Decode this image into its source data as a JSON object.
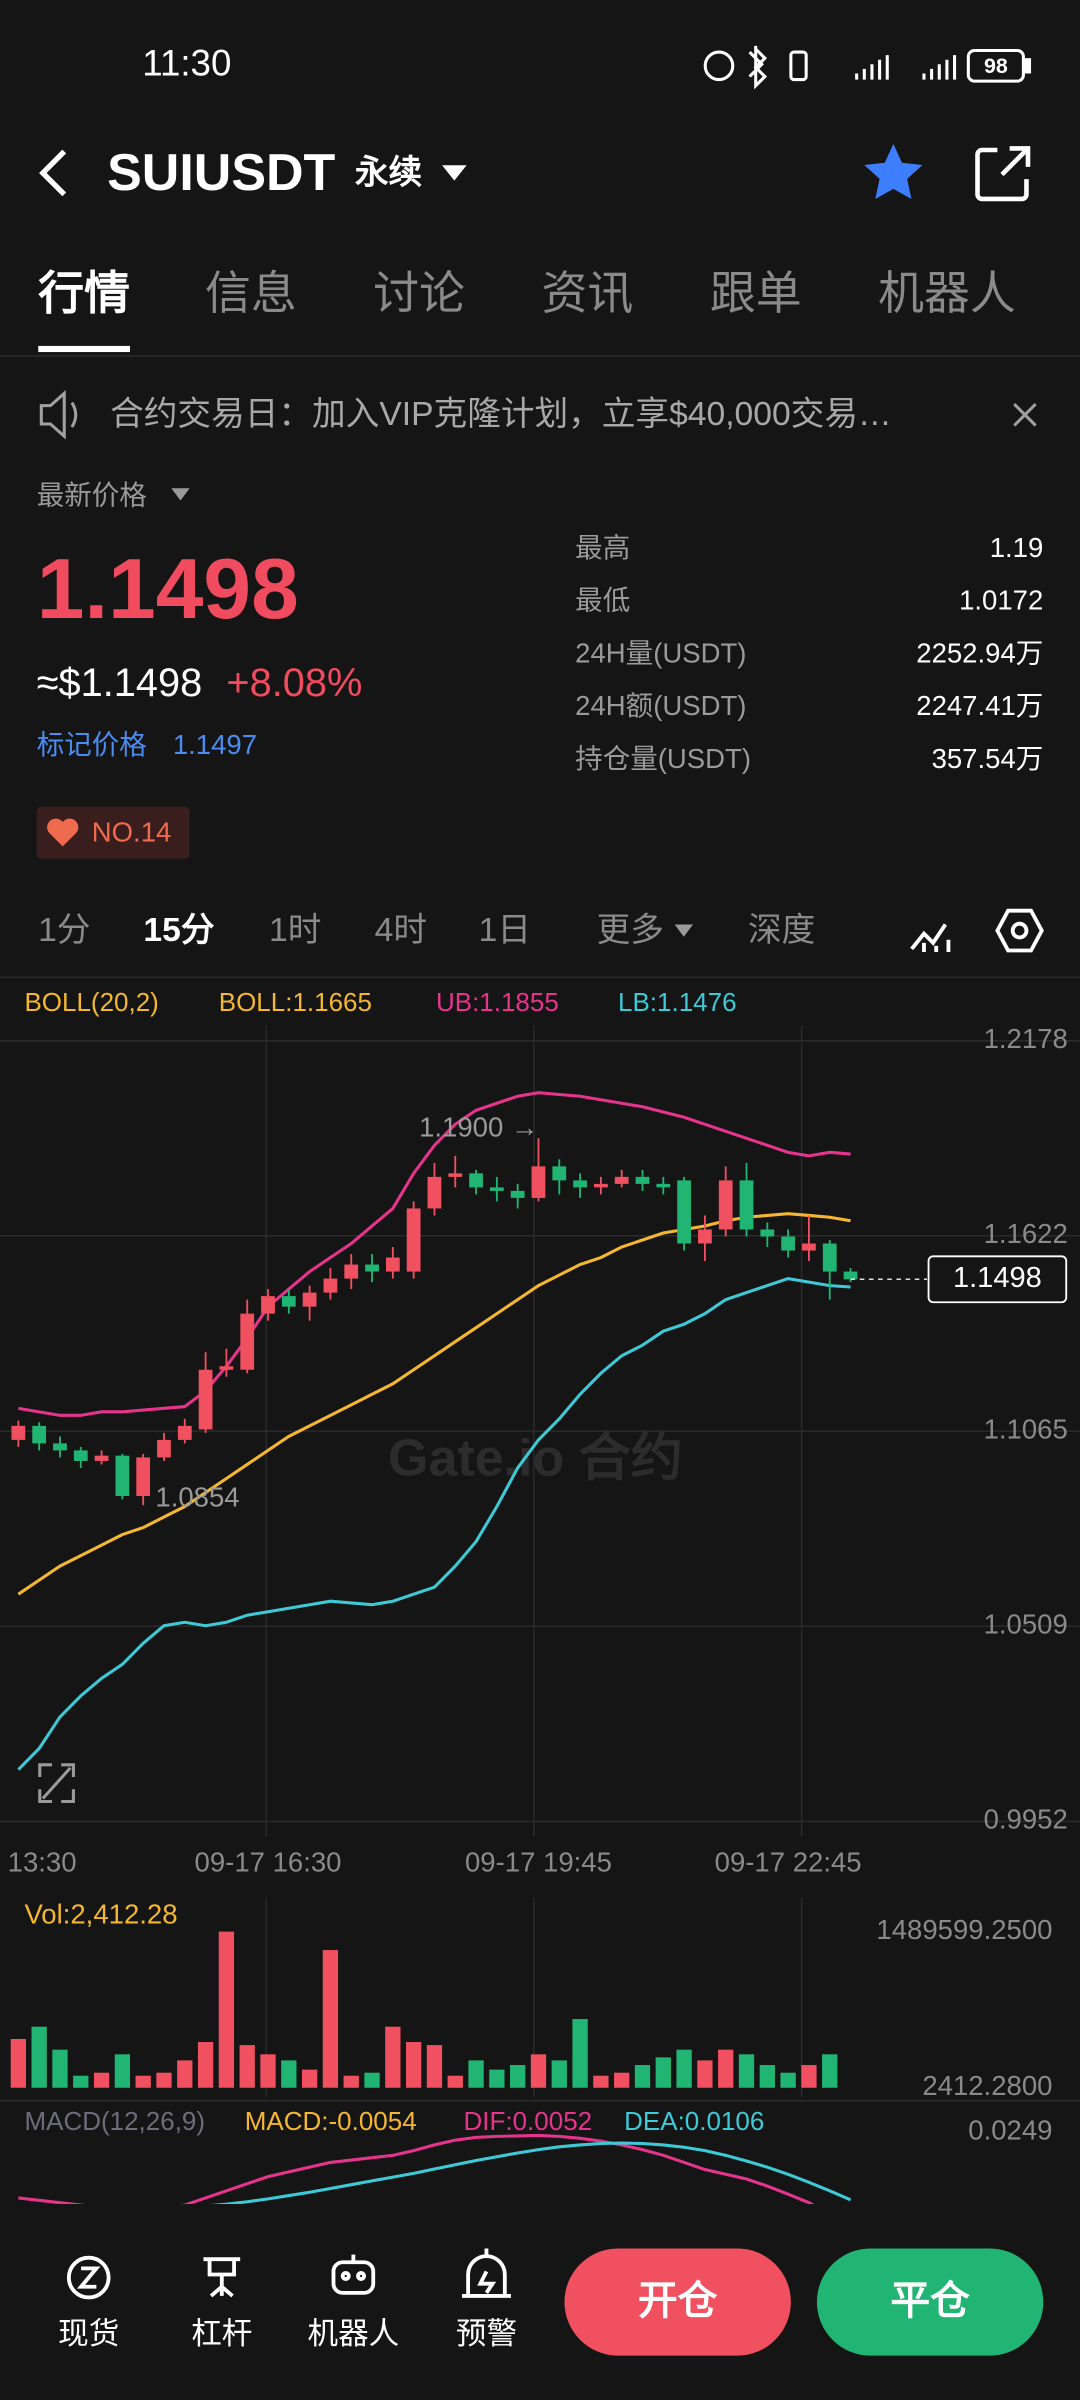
{
  "status_bar": {
    "time": "11:30",
    "battery": "98"
  },
  "header": {
    "symbol": "SUIUSDT",
    "contract": "永续"
  },
  "tabs": [
    "行情",
    "信息",
    "讨论",
    "资讯",
    "跟单",
    "机器人"
  ],
  "notice": "合约交易日：加入VIP克隆计划，立享$40,000交易…",
  "price": {
    "label": "最新价格",
    "last": "1.1498",
    "usd": "≈$1.1498",
    "change": "+8.08%",
    "mark_label": "标记价格",
    "mark": "1.1497",
    "rank": "NO.14"
  },
  "stats": [
    {
      "label": "最高",
      "value": "1.19"
    },
    {
      "label": "最低",
      "value": "1.0172"
    },
    {
      "label": "24H量(USDT)",
      "value": "2252.94万"
    },
    {
      "label": "24H额(USDT)",
      "value": "2247.41万"
    },
    {
      "label": "持仓量(USDT)",
      "value": "357.54万"
    }
  ],
  "intervals": [
    "1分",
    "15分",
    "1时",
    "4时",
    "1日",
    "更多",
    "深度"
  ],
  "bottom_nav": [
    "现货",
    "杠杆",
    "机器人",
    "预警"
  ],
  "buttons": {
    "open": "开仓",
    "close": "平仓"
  },
  "chart_data": {
    "type": "candlestick",
    "categories": [
      "13:30",
      null,
      null,
      null,
      null,
      null,
      null,
      null,
      null,
      null,
      null,
      null,
      "09-17 16:30",
      null,
      null,
      null,
      null,
      null,
      null,
      null,
      null,
      null,
      null,
      null,
      null,
      "09-17 19:45",
      null,
      null,
      null,
      null,
      null,
      null,
      null,
      null,
      null,
      null,
      null,
      "09-17 22:45",
      null,
      null,
      null
    ],
    "open": [
      1.104,
      1.108,
      1.103,
      1.101,
      1.098,
      1.0995,
      1.088,
      1.099,
      1.104,
      1.107,
      1.124,
      1.124,
      1.14,
      1.145,
      1.142,
      1.146,
      1.15,
      1.154,
      1.152,
      1.152,
      1.17,
      1.179,
      1.18,
      1.176,
      1.175,
      1.173,
      1.182,
      1.178,
      1.176,
      1.177,
      1.179,
      1.177,
      1.178,
      1.16,
      1.164,
      1.178,
      1.164,
      1.162,
      1.158,
      1.16,
      1.152
    ],
    "close": [
      1.108,
      1.103,
      1.101,
      1.098,
      1.0995,
      1.088,
      1.099,
      1.104,
      1.108,
      1.124,
      1.125,
      1.14,
      1.145,
      1.142,
      1.146,
      1.15,
      1.154,
      1.152,
      1.156,
      1.17,
      1.179,
      1.18,
      1.176,
      1.175,
      1.173,
      1.182,
      1.178,
      1.176,
      1.177,
      1.179,
      1.177,
      1.176,
      1.16,
      1.164,
      1.178,
      1.164,
      1.162,
      1.158,
      1.16,
      1.152,
      1.1498
    ],
    "high": [
      1.1095,
      1.109,
      1.105,
      1.102,
      1.101,
      1.1,
      1.1,
      1.106,
      1.11,
      1.129,
      1.13,
      1.144,
      1.147,
      1.147,
      1.148,
      1.153,
      1.157,
      1.157,
      1.159,
      1.172,
      1.183,
      1.185,
      1.181,
      1.179,
      1.177,
      1.19,
      1.184,
      1.18,
      1.179,
      1.181,
      1.181,
      1.179,
      1.179,
      1.168,
      1.182,
      1.183,
      1.166,
      1.164,
      1.168,
      1.161,
      1.153
    ],
    "low": [
      1.102,
      1.101,
      1.099,
      1.096,
      1.097,
      1.087,
      1.0854,
      1.098,
      1.103,
      1.106,
      1.122,
      1.123,
      1.138,
      1.14,
      1.138,
      1.144,
      1.147,
      1.149,
      1.15,
      1.15,
      1.168,
      1.176,
      1.174,
      1.172,
      1.17,
      1.172,
      1.174,
      1.173,
      1.174,
      1.176,
      1.175,
      1.174,
      1.158,
      1.155,
      1.162,
      1.162,
      1.159,
      1.156,
      1.155,
      1.144,
      1.149
    ],
    "up_color": "#f0505f",
    "down_color": "#21b573",
    "ylim": [
      0.9952,
      1.2178
    ],
    "yticks": [
      1.2178,
      1.1622,
      1.1065,
      1.0509,
      0.9952
    ],
    "grid": true,
    "indicator_labels": [
      {
        "text": "BOLL(20,2)",
        "color": "#f5b731"
      },
      {
        "text": "BOLL:1.1665",
        "color": "#f5b731"
      },
      {
        "text": "UB:1.1855",
        "color": "#e6348c"
      },
      {
        "text": "LB:1.1476",
        "color": "#3ec9d6"
      }
    ],
    "boll_mid": [
      1.06,
      1.064,
      1.068,
      1.071,
      1.074,
      1.077,
      1.079,
      1.082,
      1.085,
      1.089,
      1.093,
      1.097,
      1.101,
      1.105,
      1.108,
      1.111,
      1.114,
      1.117,
      1.12,
      1.124,
      1.128,
      1.132,
      1.136,
      1.14,
      1.144,
      1.148,
      1.151,
      1.154,
      1.156,
      1.159,
      1.161,
      1.163,
      1.164,
      1.165,
      1.1665,
      1.1675,
      1.168,
      1.1685,
      1.168,
      1.1675,
      1.1665
    ],
    "boll_ub": [
      1.113,
      1.112,
      1.111,
      1.111,
      1.112,
      1.112,
      1.1125,
      1.113,
      1.1135,
      1.118,
      1.125,
      1.133,
      1.142,
      1.147,
      1.152,
      1.156,
      1.16,
      1.165,
      1.17,
      1.18,
      1.188,
      1.194,
      1.198,
      1.2,
      1.202,
      1.203,
      1.2025,
      1.202,
      1.201,
      1.2,
      1.199,
      1.1975,
      1.196,
      1.194,
      1.192,
      1.19,
      1.188,
      1.186,
      1.185,
      1.186,
      1.1855
    ],
    "boll_lb": [
      1.01,
      1.016,
      1.025,
      1.031,
      1.036,
      1.04,
      1.046,
      1.051,
      1.052,
      1.051,
      1.052,
      1.054,
      1.055,
      1.056,
      1.057,
      1.058,
      1.0575,
      1.057,
      1.058,
      1.06,
      1.062,
      1.068,
      1.075,
      1.085,
      1.096,
      1.104,
      1.11,
      1.117,
      1.123,
      1.128,
      1.131,
      1.135,
      1.137,
      1.14,
      1.144,
      1.146,
      1.148,
      1.15,
      1.149,
      1.148,
      1.1476
    ],
    "boll_colors": {
      "mid": "#f5b731",
      "ub": "#e6348c",
      "lb": "#3ec9d6"
    },
    "high_label": "1.1900 →",
    "low_label": "1.0854",
    "last_price_label": "1.1498",
    "watermark": "Gate.io 合约",
    "volume": {
      "label": "Vol:2,412.28",
      "values": [
        467000,
        584000,
        365000,
        117000,
        146000,
        321000,
        117000,
        146000,
        263000,
        438000,
        1489599.25,
        409000,
        321000,
        263000,
        175000,
        1314000,
        117000,
        146000,
        584000,
        438000,
        409000,
        117000,
        263000,
        175000,
        219000,
        321000,
        263000,
        657000,
        117000,
        146000,
        219000,
        292000,
        365000,
        263000,
        365000,
        321000,
        219000,
        146000,
        219000,
        321000,
        2412.28
      ],
      "ylim": [
        2412.28,
        1489599.25
      ],
      "yticks": [
        {
          "value": 1489599.25,
          "label": "1489599.2500"
        },
        {
          "value": 2412.28,
          "label": "2412.2800"
        }
      ]
    },
    "macd": {
      "labels": [
        {
          "text": "MACD(12,26,9)",
          "color": "#6c6c7c"
        },
        {
          "text": "MACD:-0.0054",
          "color": "#f5b731"
        },
        {
          "text": "DIF:0.0052",
          "color": "#e6348c"
        },
        {
          "text": "DEA:0.0106",
          "color": "#3ec9d6"
        }
      ],
      "dif": [
        0.011,
        0.0105,
        0.01,
        0.0095,
        0.009,
        0.0088,
        0.0085,
        0.009,
        0.0095,
        0.011,
        0.0125,
        0.014,
        0.0155,
        0.0165,
        0.0175,
        0.0185,
        0.019,
        0.0195,
        0.02,
        0.021,
        0.0222,
        0.0232,
        0.0238,
        0.024,
        0.0241,
        0.0242,
        0.024,
        0.0236,
        0.023,
        0.0222,
        0.0212,
        0.02,
        0.0185,
        0.017,
        0.016,
        0.015,
        0.0135,
        0.0118,
        0.01,
        0.0075,
        0.0052
      ],
      "dea": [
        0.009,
        0.0091,
        0.0092,
        0.0092,
        0.0092,
        0.0091,
        0.009,
        0.009,
        0.0091,
        0.0093,
        0.0097,
        0.0102,
        0.0108,
        0.0115,
        0.0122,
        0.013,
        0.0138,
        0.0146,
        0.0154,
        0.0162,
        0.0171,
        0.018,
        0.0189,
        0.0197,
        0.0205,
        0.0212,
        0.0218,
        0.0222,
        0.0225,
        0.0226,
        0.0225,
        0.0222,
        0.0217,
        0.021,
        0.02,
        0.0188,
        0.0175,
        0.016,
        0.0143,
        0.0125,
        0.0106
      ],
      "colors": {
        "dif": "#e6348c",
        "dea": "#3ec9d6"
      },
      "ylim": [
        0,
        0.0249
      ],
      "yticks": [
        0.0249
      ]
    }
  }
}
